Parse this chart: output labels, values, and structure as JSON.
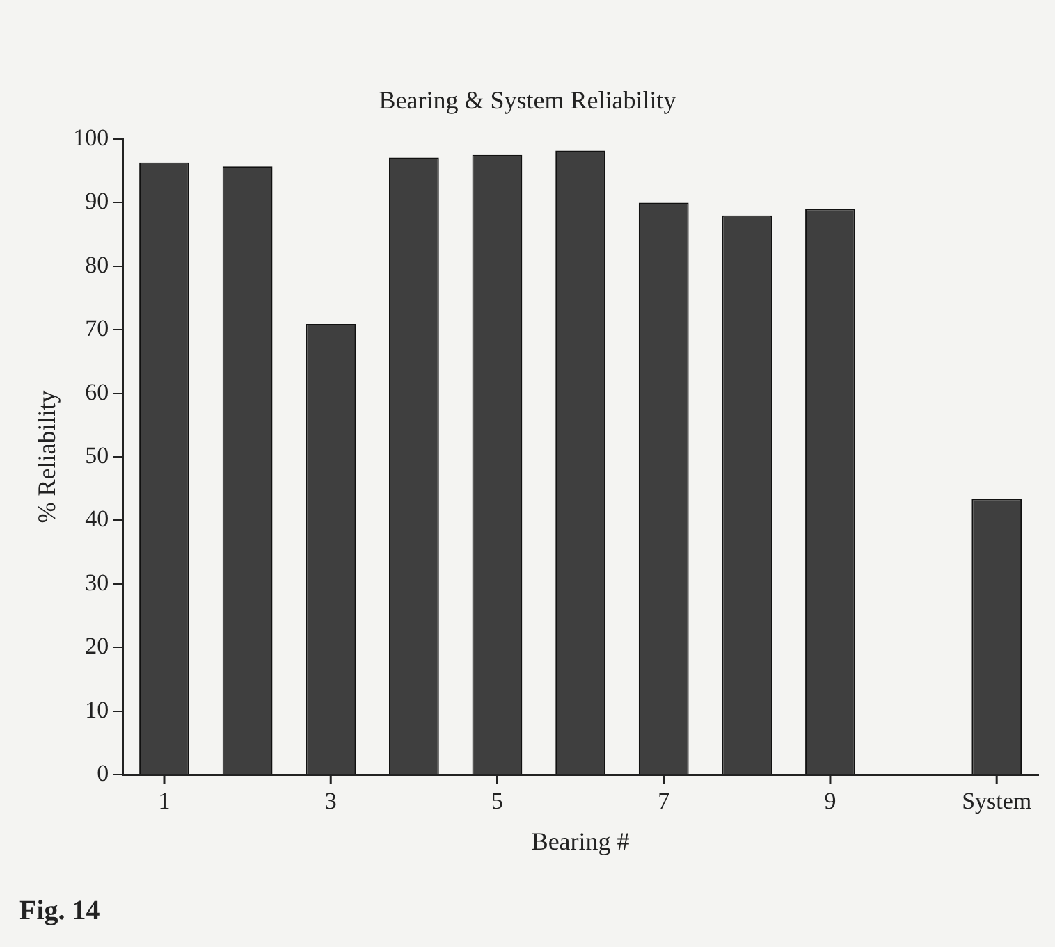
{
  "chart_data": {
    "type": "bar",
    "title": "Bearing & System Reliability",
    "xlabel": "Bearing #",
    "ylabel": "% Reliability",
    "categories": [
      "1",
      null,
      "3",
      null,
      "5",
      null,
      "7",
      null,
      "9",
      null,
      "System"
    ],
    "values": [
      96.3,
      95.7,
      70.9,
      97.1,
      97.5,
      98.2,
      90,
      88,
      89,
      null,
      43.4
    ],
    "color": "#3f3f3f",
    "ylim": [
      0,
      100
    ],
    "yticks": [
      0,
      10,
      20,
      30,
      40,
      50,
      60,
      70,
      80,
      90,
      100
    ],
    "grid": false,
    "legend": false,
    "annotations": [
      "Fig. 14"
    ]
  }
}
